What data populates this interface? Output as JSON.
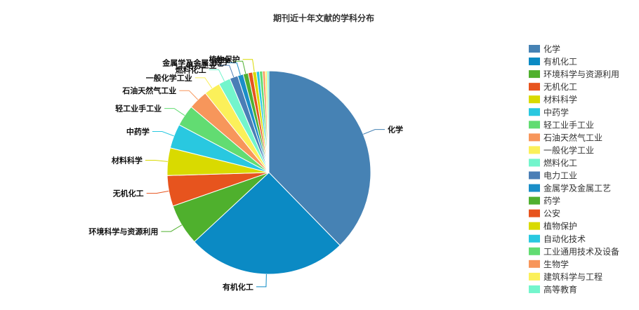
{
  "chart_data": {
    "type": "pie",
    "title": "期刊近十年文献的学科分布",
    "legend_position": "right",
    "slices": [
      {
        "label": "化学",
        "value": 37.9,
        "color": "#4682B4"
      },
      {
        "label": "有机化工",
        "value": 25.5,
        "color": "#0B8AC4"
      },
      {
        "label": "环境科学与资源利用",
        "value": 6.6,
        "color": "#4FB02D"
      },
      {
        "label": "无机化工",
        "value": 4.9,
        "color": "#E7541E"
      },
      {
        "label": "材料科学",
        "value": 4.4,
        "color": "#D9DA00"
      },
      {
        "label": "中药学",
        "value": 3.9,
        "color": "#29C8E0"
      },
      {
        "label": "轻工业手工业",
        "value": 3.4,
        "color": "#62DC72"
      },
      {
        "label": "石油天然气工业",
        "value": 3.1,
        "color": "#F7965B"
      },
      {
        "label": "一般化学工业",
        "value": 2.6,
        "color": "#FBF05A"
      },
      {
        "label": "燃料化工",
        "value": 1.9,
        "color": "#73F5CC"
      },
      {
        "label": "电力工业",
        "value": 1.3,
        "color": "#4A7EB6"
      },
      {
        "label": "金属学及金属工艺",
        "value": 0.9,
        "color": "#1A8EC8"
      },
      {
        "label": "药学",
        "value": 0.8,
        "color": "#50B030"
      },
      {
        "label": "公安",
        "value": 0.7,
        "color": "#E7541E"
      },
      {
        "label": "植物保护",
        "value": 0.6,
        "color": "#D9DA00"
      },
      {
        "label": "自动化技术",
        "value": 0.5,
        "color": "#29C8E0"
      },
      {
        "label": "工业通用技术及设备",
        "value": 0.5,
        "color": "#62DC72"
      },
      {
        "label": "生物学",
        "value": 0.4,
        "color": "#F7965B"
      },
      {
        "label": "建筑科学与工程",
        "value": 0.3,
        "color": "#FBF05A"
      },
      {
        "label": "高等教育",
        "value": 0.3,
        "color": "#73F5CC"
      }
    ],
    "labeled_slices": [
      "化学",
      "有机化工",
      "环境科学与资源利用",
      "无机化工",
      "材料科学",
      "中药学",
      "轻工业手工业",
      "石油天然气工业",
      "一般化学工业",
      "燃料化工",
      "电力工业",
      "金属学及金属工艺",
      "药学",
      "植物保护"
    ]
  }
}
